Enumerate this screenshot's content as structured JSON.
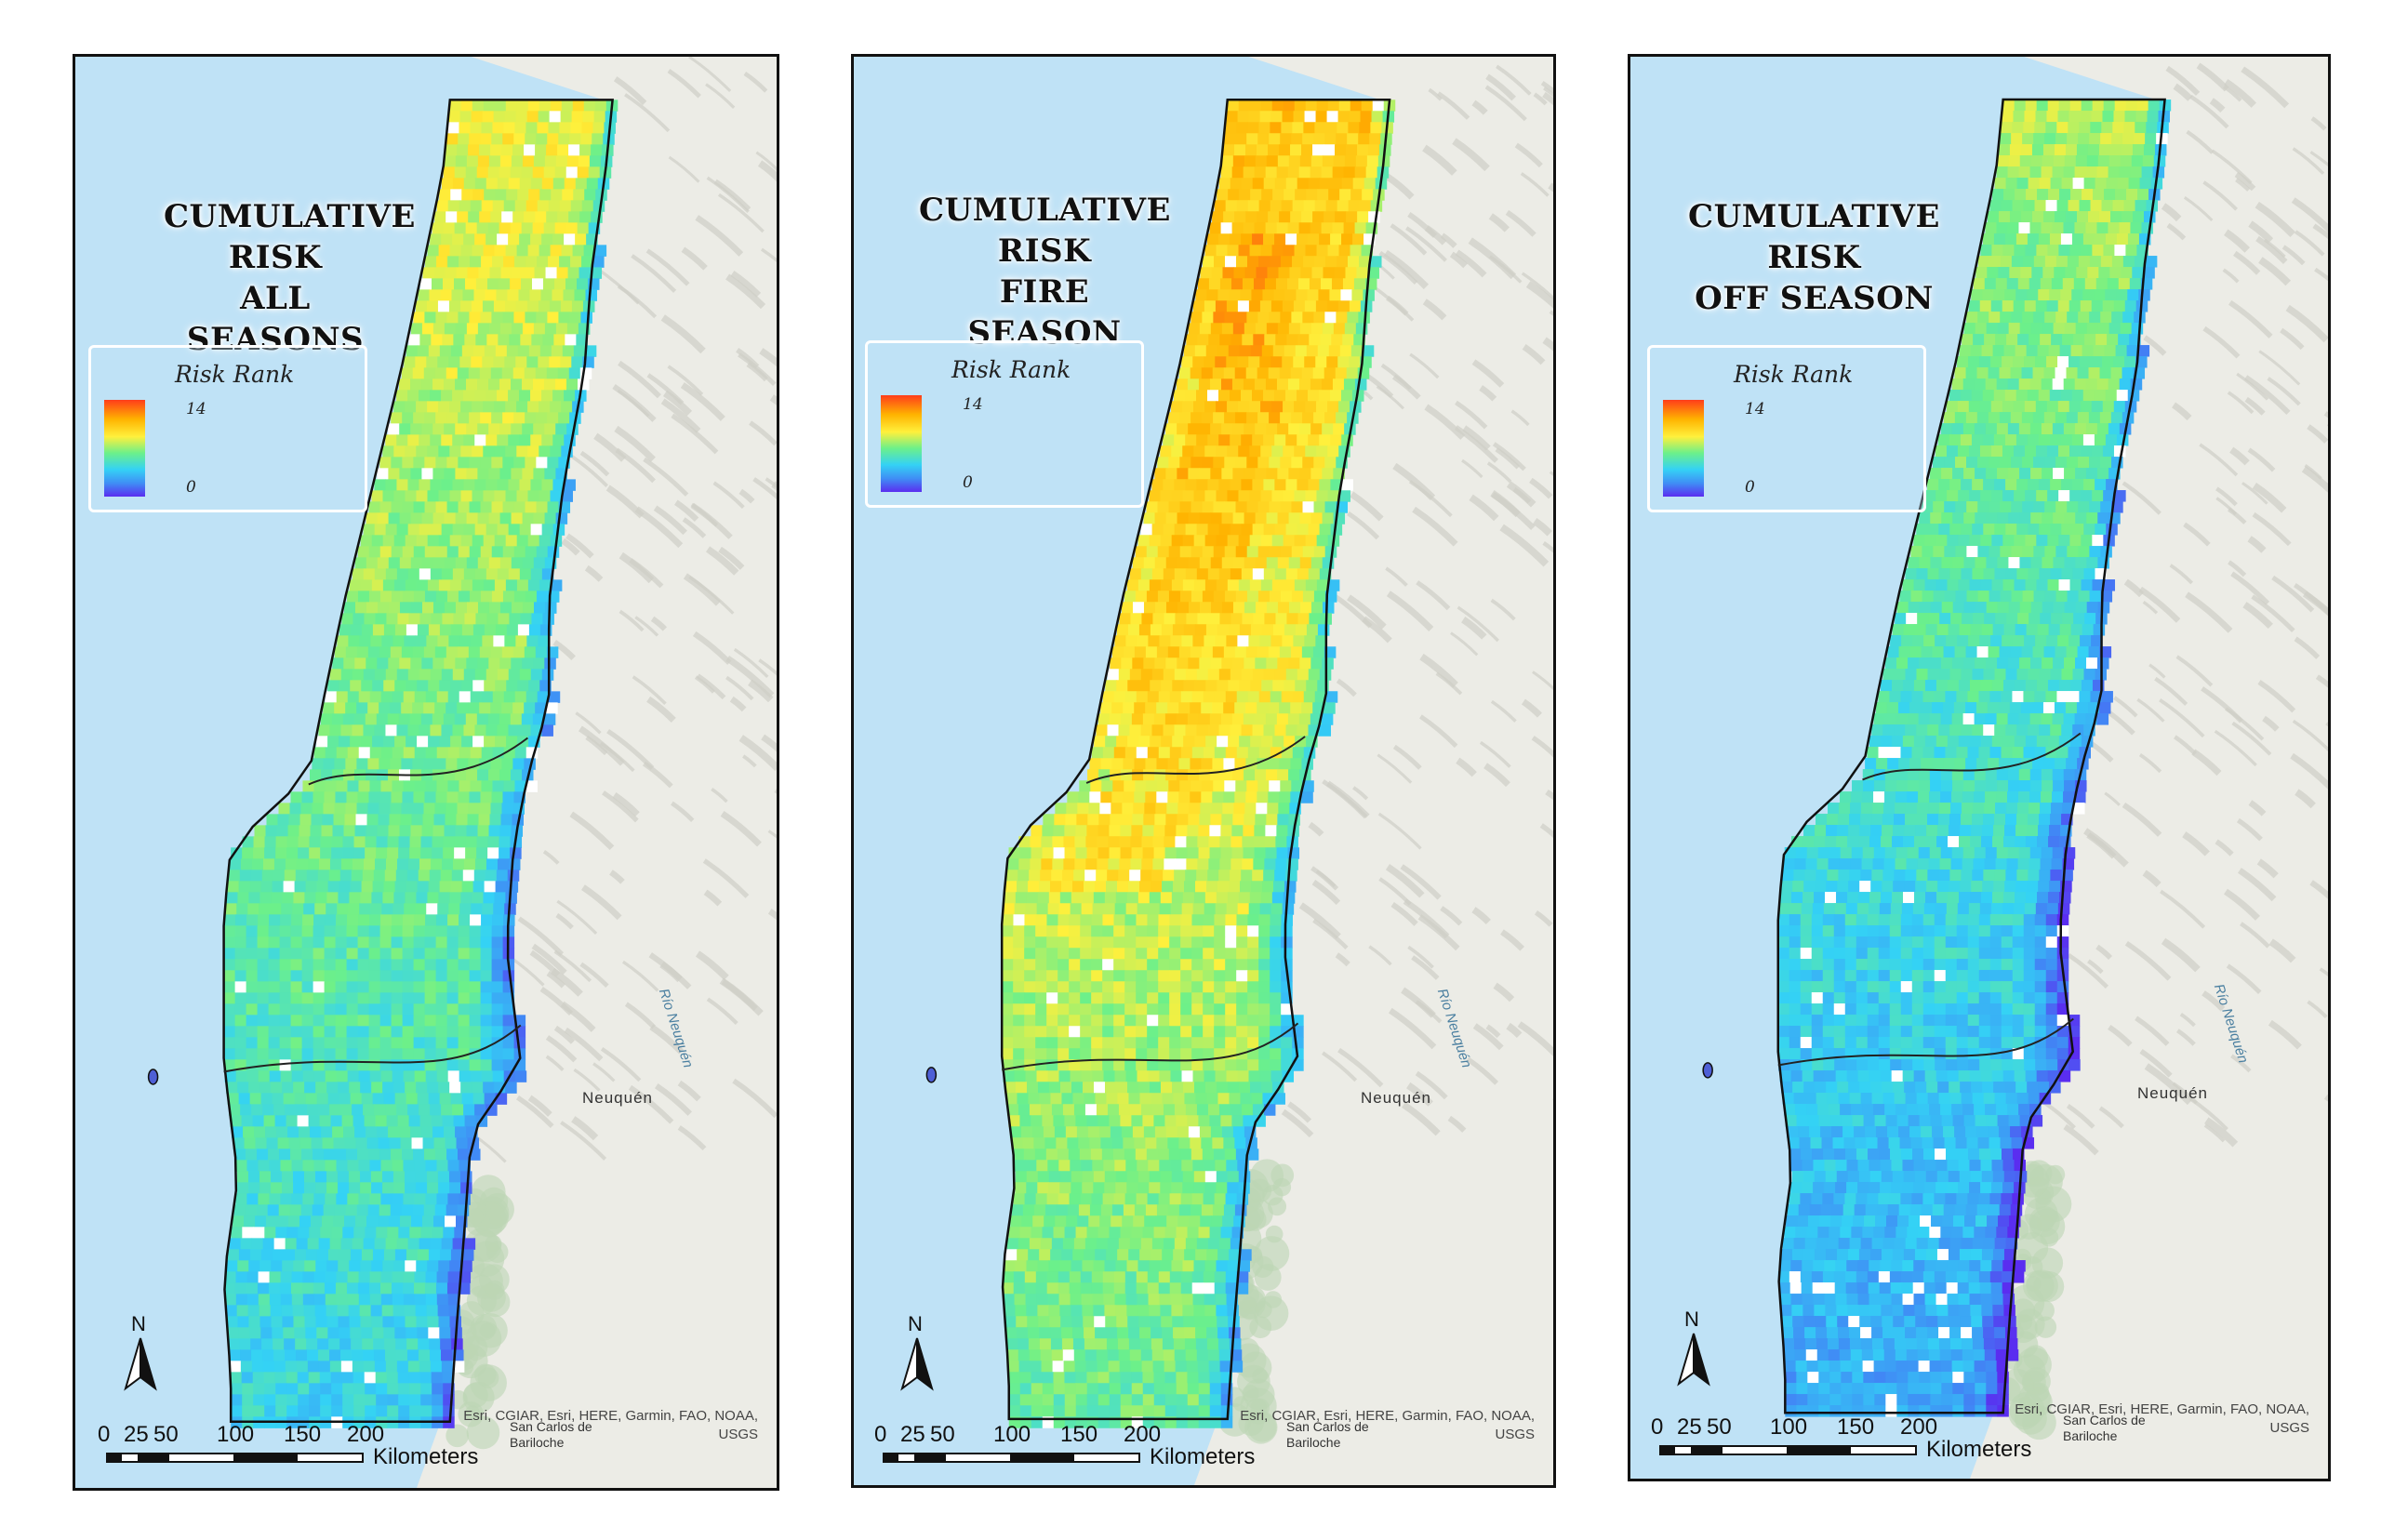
{
  "panels": [
    {
      "title_lines": [
        "CUMULATIVE",
        "RISK",
        "ALL SEASONS"
      ],
      "legend_title": "Risk Rank",
      "legend_max": "14",
      "legend_min": "0",
      "scale_ticks": [
        "0",
        "25",
        "50",
        "100",
        "150",
        "200"
      ],
      "scale_unit": "Kilometers",
      "north_label": "N",
      "attribution": [
        "Esri, CGIAR, Esri, HERE, Garmin, FAO, NOAA,",
        "USGS"
      ],
      "places": {
        "neuquen": "Neuquén",
        "rio_neuquen": "Río Neuquén",
        "bariloche": [
          "San Carlos de",
          "Bariloche"
        ]
      },
      "season": "all"
    },
    {
      "title_lines": [
        "CUMULATIVE",
        "RISK",
        "FIRE SEASON"
      ],
      "legend_title": "Risk Rank",
      "legend_max": "14",
      "legend_min": "0",
      "scale_ticks": [
        "0",
        "25",
        "50",
        "100",
        "150",
        "200"
      ],
      "scale_unit": "Kilometers",
      "north_label": "N",
      "attribution": [
        "Esri, CGIAR, Esri, HERE, Garmin, FAO, NOAA,",
        "USGS"
      ],
      "places": {
        "neuquen": "Neuquén",
        "rio_neuquen": "Río Neuquén",
        "bariloche": [
          "San Carlos de",
          "Bariloche"
        ]
      },
      "season": "fire"
    },
    {
      "title_lines": [
        "CUMULATIVE",
        "RISK",
        "OFF SEASON"
      ],
      "legend_title": "Risk Rank",
      "legend_max": "14",
      "legend_min": "0",
      "scale_ticks": [
        "0",
        "25",
        "50",
        "100",
        "150",
        "200"
      ],
      "scale_unit": "Kilometers",
      "north_label": "N",
      "attribution": [
        "Esri, CGIAR, Esri, HERE, Garmin, FAO, NOAA,",
        "USGS"
      ],
      "places": {
        "neuquen": "Neuquén",
        "rio_neuquen": "Río Neuquén",
        "bariloche": [
          "San Carlos de",
          "Bariloche"
        ]
      },
      "season": "off"
    }
  ],
  "colors": {
    "ocean": "#bfe2f6",
    "land": "#ecece6",
    "risk_ramp": [
      "#5a2df0",
      "#3f8ff5",
      "#34d2f5",
      "#6cf08a",
      "#fff03c",
      "#ffb300",
      "#ff3d1a"
    ]
  }
}
